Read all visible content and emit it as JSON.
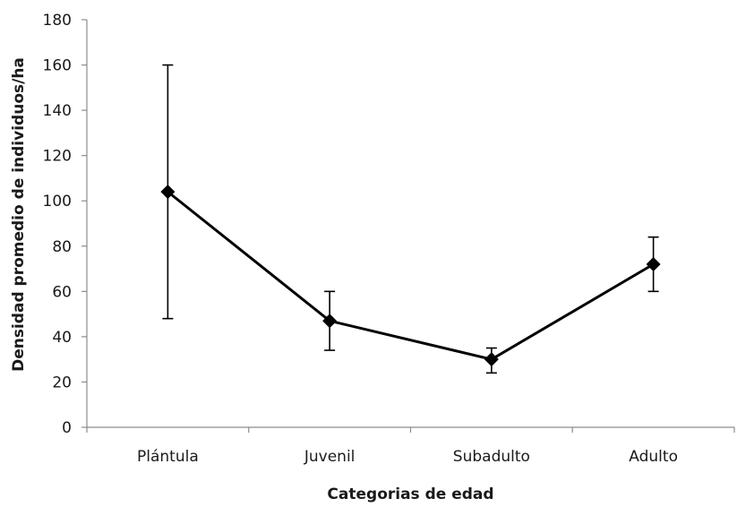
{
  "chart_data": {
    "type": "line",
    "title": "",
    "xlabel": "Categorias de edad",
    "ylabel": "Densidad  promedio de individuos/ha",
    "categories": [
      "Plántula",
      "Juvenil",
      "Subadulto",
      "Adulto"
    ],
    "ylim": [
      0,
      180
    ],
    "yticks": [
      0,
      20,
      40,
      60,
      80,
      100,
      120,
      140,
      160,
      180
    ],
    "grid": false,
    "legend": "none",
    "series": [
      {
        "values": [
          104,
          47,
          30,
          72
        ],
        "error_low": [
          48,
          34,
          24,
          60
        ],
        "error_high": [
          160,
          60,
          35,
          84
        ],
        "color": "#000000",
        "marker": "diamond"
      }
    ]
  }
}
